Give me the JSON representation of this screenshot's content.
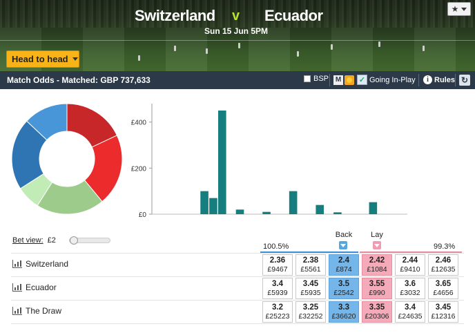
{
  "event": {
    "home": "Switzerland",
    "vs": "v",
    "away": "Ecuador",
    "kickoff": "Sun 15 Jun 5PM",
    "fav_icon": "star-icon",
    "head_to_head_label": "Head to head"
  },
  "market": {
    "title": "Match Odds - Matched: GBP 737,633",
    "bsp_label": "BSP",
    "m_label": "M",
    "inplay_label": "Going In-Play",
    "rules_label": "Rules"
  },
  "colors": {
    "back_best": "#75b6ea",
    "lay_best": "#f5aab9",
    "bar": "#167e7e",
    "header_bar": "#2b3949"
  },
  "chart_data": [
    {
      "type": "pie",
      "donut": true,
      "slices": [
        {
          "value": 18,
          "color": "#c8272a"
        },
        {
          "value": 21,
          "color": "#ec2c2c"
        },
        {
          "value": 20,
          "color": "#9dcb8c"
        },
        {
          "value": 7,
          "color": "#c1ecb6"
        },
        {
          "value": 21,
          "color": "#2f75b3"
        },
        {
          "value": 13,
          "color": "#4896d8"
        }
      ]
    },
    {
      "type": "bar",
      "ylim": [
        0,
        450
      ],
      "yticks": [
        {
          "value": 0,
          "label": "£0"
        },
        {
          "value": 200,
          "label": "£200"
        },
        {
          "value": 400,
          "label": "£400"
        }
      ],
      "values": [
        0,
        0,
        0,
        0,
        0,
        100,
        70,
        450,
        0,
        20,
        0,
        0,
        10,
        0,
        0,
        100,
        0,
        0,
        40,
        0,
        8,
        0,
        0,
        0,
        52,
        0,
        0,
        0
      ],
      "grid": false
    }
  ],
  "bet_view": {
    "label": "Bet view:",
    "stake": "£2"
  },
  "book": {
    "back_pct": "100.5%",
    "lay_pct": "99.3%",
    "back_label": "Back",
    "lay_label": "Lay"
  },
  "runners": [
    {
      "name": "Switzerland",
      "back": [
        {
          "price": "2.36",
          "size": "£9467"
        },
        {
          "price": "2.38",
          "size": "£5561"
        },
        {
          "price": "2.4",
          "size": "£874"
        }
      ],
      "lay": [
        {
          "price": "2.42",
          "size": "£1084"
        },
        {
          "price": "2.44",
          "size": "£9410"
        },
        {
          "price": "2.46",
          "size": "£12635"
        }
      ]
    },
    {
      "name": "Ecuador",
      "back": [
        {
          "price": "3.4",
          "size": "£5939"
        },
        {
          "price": "3.45",
          "size": "£5935"
        },
        {
          "price": "3.5",
          "size": "£2542"
        }
      ],
      "lay": [
        {
          "price": "3.55",
          "size": "£990"
        },
        {
          "price": "3.6",
          "size": "£3032"
        },
        {
          "price": "3.65",
          "size": "£4656"
        }
      ]
    },
    {
      "name": "The Draw",
      "back": [
        {
          "price": "3.2",
          "size": "£25223"
        },
        {
          "price": "3.25",
          "size": "£32252"
        },
        {
          "price": "3.3",
          "size": "£36620"
        }
      ],
      "lay": [
        {
          "price": "3.35",
          "size": "£20306"
        },
        {
          "price": "3.4",
          "size": "£24635"
        },
        {
          "price": "3.45",
          "size": "£12316"
        }
      ]
    }
  ]
}
